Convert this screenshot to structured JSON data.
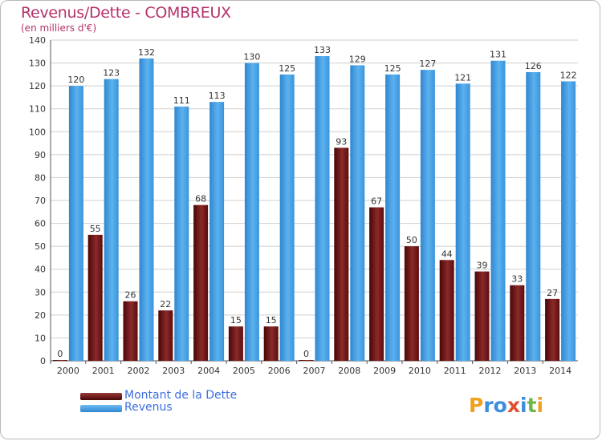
{
  "chart_data": {
    "type": "bar",
    "title": "Revenus/Dette - COMBREUX",
    "subtitle": "(en milliers d'€)",
    "categories": [
      "2000",
      "2001",
      "2002",
      "2003",
      "2004",
      "2005",
      "2006",
      "2007",
      "2008",
      "2009",
      "2010",
      "2011",
      "2012",
      "2013",
      "2014"
    ],
    "series": [
      {
        "name": "Montant de la Dette",
        "color": "#7a1a1a",
        "values": [
          0,
          55,
          26,
          22,
          68,
          15,
          15,
          0,
          93,
          67,
          50,
          44,
          39,
          33,
          27
        ]
      },
      {
        "name": "Revenus",
        "color": "#3a9ae0",
        "values": [
          120,
          123,
          132,
          111,
          113,
          130,
          125,
          133,
          129,
          125,
          127,
          121,
          131,
          126,
          122
        ]
      }
    ],
    "ylim": [
      0,
      140
    ],
    "yticks": [
      0,
      10,
      20,
      30,
      40,
      50,
      60,
      70,
      80,
      90,
      100,
      110,
      120,
      130,
      140
    ],
    "grid": true,
    "legend_position": "bottom-left"
  },
  "logo": {
    "text": "Proxiti"
  }
}
